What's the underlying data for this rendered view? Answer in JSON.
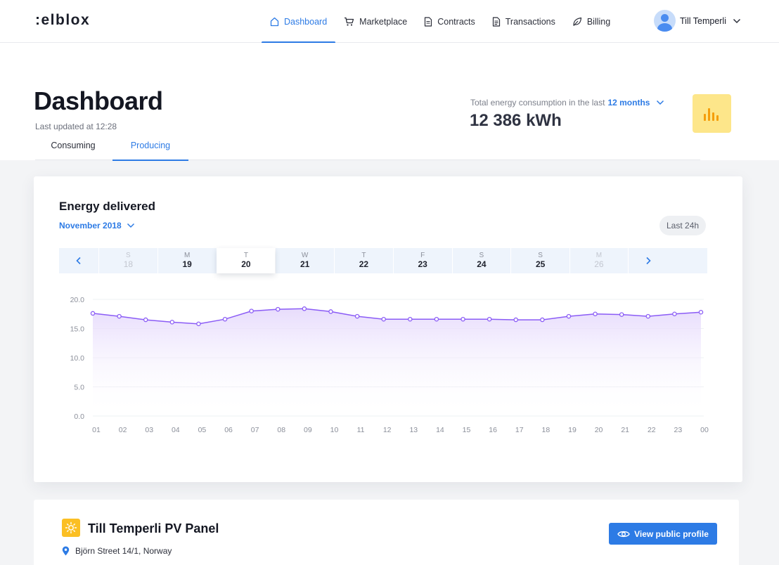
{
  "app": {
    "logo": ":elblox"
  },
  "nav": {
    "items": [
      {
        "label": "Dashboard",
        "icon": "home-icon",
        "active": true
      },
      {
        "label": "Marketplace",
        "icon": "cart-icon",
        "active": false
      },
      {
        "label": "Contracts",
        "icon": "document-icon",
        "active": false
      },
      {
        "label": "Transactions",
        "icon": "document-list-icon",
        "active": false
      },
      {
        "label": "Billing",
        "icon": "leaf-icon",
        "active": false
      }
    ],
    "user": {
      "name": "Till Temperli"
    }
  },
  "header": {
    "title": "Dashboard",
    "updated": "Last updated at 12:28",
    "tabs": [
      {
        "label": "Consuming",
        "active": false
      },
      {
        "label": "Producing",
        "active": true
      }
    ],
    "total_label": "Total energy consumption in the last",
    "total_period": "12 months",
    "total_value": "12 386 kWh"
  },
  "energy_card": {
    "title": "Energy delivered",
    "month": "November 2018",
    "range_button": "Last 24h",
    "days": [
      {
        "letter": "S",
        "num": "18",
        "state": "dim"
      },
      {
        "letter": "M",
        "num": "19",
        "state": "normal"
      },
      {
        "letter": "T",
        "num": "20",
        "state": "selected"
      },
      {
        "letter": "W",
        "num": "21",
        "state": "normal"
      },
      {
        "letter": "T",
        "num": "22",
        "state": "normal"
      },
      {
        "letter": "F",
        "num": "23",
        "state": "normal"
      },
      {
        "letter": "S",
        "num": "24",
        "state": "normal"
      },
      {
        "letter": "S",
        "num": "25",
        "state": "normal"
      },
      {
        "letter": "M",
        "num": "26",
        "state": "dim"
      }
    ]
  },
  "chart_data": {
    "type": "area",
    "x": [
      "01",
      "02",
      "03",
      "04",
      "05",
      "06",
      "07",
      "08",
      "09",
      "10",
      "11",
      "12",
      "13",
      "14",
      "15",
      "16",
      "17",
      "18",
      "19",
      "20",
      "21",
      "22",
      "23",
      "00"
    ],
    "series": [
      {
        "values": [
          17.6,
          17.1,
          16.5,
          16.1,
          15.8,
          16.6,
          18.0,
          18.3,
          18.4,
          17.9,
          17.1,
          16.6,
          16.6,
          16.6,
          16.6,
          16.6,
          16.5,
          16.5,
          17.1,
          17.5,
          17.4,
          17.1,
          17.5,
          17.8
        ]
      }
    ],
    "yticks": [
      "20.0",
      "15.0",
      "10.0",
      "5.0",
      "0.0"
    ],
    "ylim": [
      0,
      20
    ],
    "grid": true,
    "line_color": "#8b5cf6",
    "fill_color": "#ede4ff"
  },
  "panel": {
    "title": "Till Temperli PV Panel",
    "address": "Björn Street 14/1, Norway",
    "button": "View public profile"
  },
  "colors": {
    "accent": "#2d7be5",
    "stat_tile": "#fde68a",
    "sun_tile": "#fbbf24"
  }
}
